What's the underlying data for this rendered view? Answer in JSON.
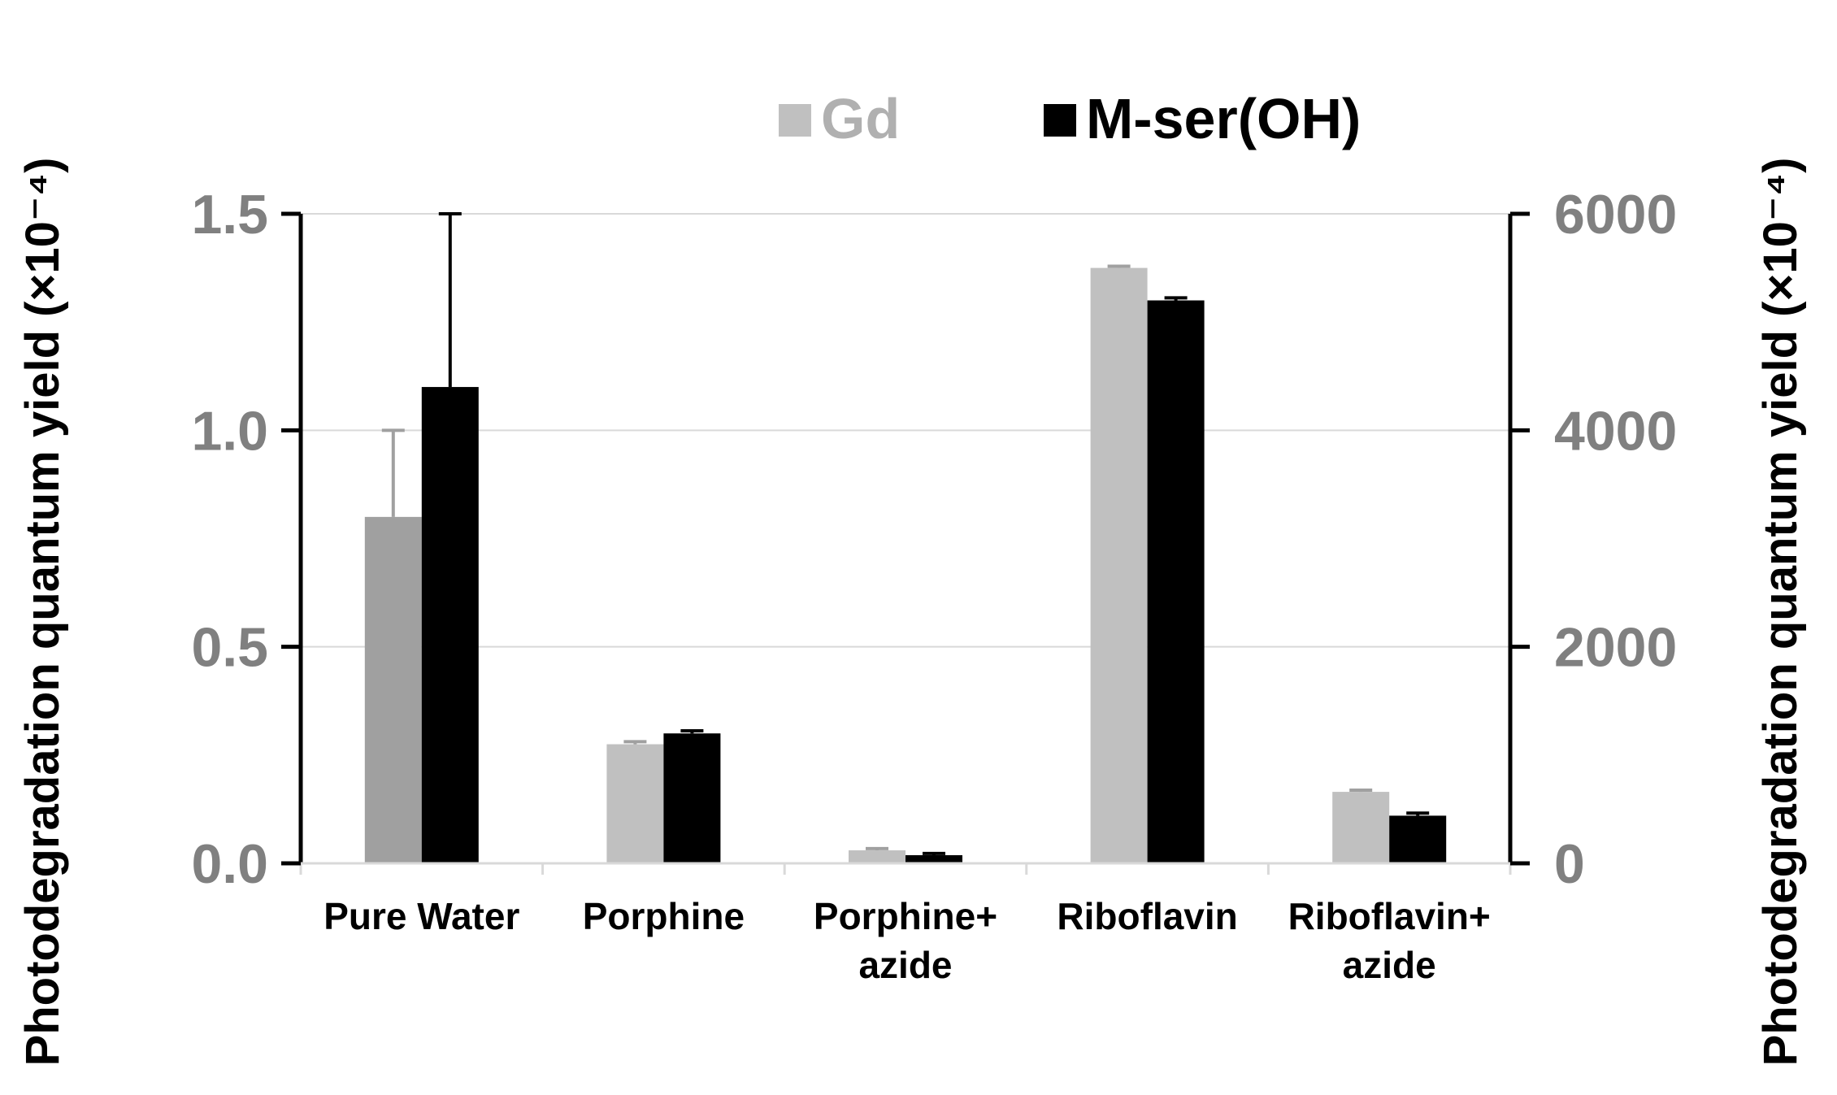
{
  "chart_data": {
    "type": "bar",
    "categories": [
      [
        "Pure Water"
      ],
      [
        "Porphine"
      ],
      [
        "Porphine+",
        "azide"
      ],
      [
        "Riboflavin"
      ],
      [
        "Riboflavin+",
        "azide"
      ]
    ],
    "series": [
      {
        "name": "Gd",
        "values": [
          0.8,
          0.275,
          0.03,
          1.375,
          0.165
        ],
        "error": [
          0.2,
          0.006,
          0.004,
          0.004,
          0.004
        ],
        "color": "#c0c0c0",
        "axis": "left"
      },
      {
        "name": "M-ser(OH)",
        "values": [
          4400,
          1200,
          75,
          5200,
          440
        ],
        "error": [
          1600,
          24,
          16,
          24,
          24
        ],
        "color": "#000000",
        "axis": "right"
      }
    ],
    "special_colors": {
      "Pure Water": {
        "Gd": "#a0a0a0"
      }
    },
    "error_bar_colors": {
      "Gd": "#a0a0a0",
      "M-ser(OH)": "#000000"
    },
    "y_left": {
      "label": "Photodegradation quantum yield (×10⁻⁴)",
      "ylim": [
        0,
        1.5
      ],
      "ticks": [
        "0.0",
        "0.5",
        "1.0",
        "1.5"
      ],
      "tick_values": [
        0,
        0.5,
        1.0,
        1.5
      ]
    },
    "y_right": {
      "label": "Photodegradation quantum yield (×10⁻⁴)",
      "ylim": [
        0,
        6000
      ],
      "ticks": [
        "0",
        "2000",
        "4000",
        "6000"
      ],
      "tick_values": [
        0,
        2000,
        4000,
        6000
      ]
    },
    "xlabel": "",
    "grid": true,
    "legend": {
      "placement": "top-center",
      "entries": [
        "Gd",
        "M-ser(OH)"
      ]
    }
  }
}
